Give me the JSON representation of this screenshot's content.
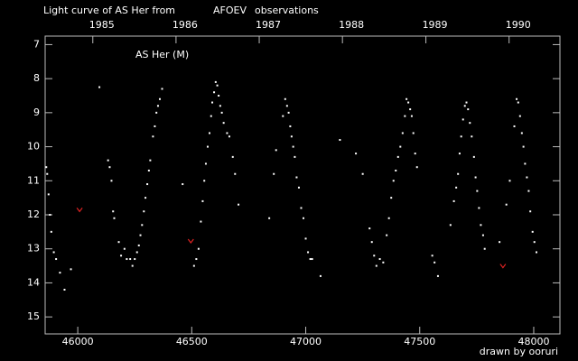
{
  "chart_data": {
    "type": "scatter",
    "title": "Light curve of AS Her from",
    "title_highlight": "AFOEV",
    "title_highlight_color": "#ffff00",
    "title_suffix": "observations",
    "annotation": "AS Her (M)",
    "credit": "drawn by ooruri",
    "credit_color": "#40b8e8",
    "xlim": [
      45857,
      48115
    ],
    "ylim": [
      15.5,
      6.75
    ],
    "xticks": [
      46000,
      46500,
      47000,
      47500,
      48000
    ],
    "yticks": [
      7,
      8,
      9,
      10,
      11,
      12,
      13,
      14,
      15
    ],
    "x2ticks": [
      {
        "value": 46066,
        "label": "1985"
      },
      {
        "value": 46431,
        "label": "1986"
      },
      {
        "value": 46796,
        "label": "1987"
      },
      {
        "value": 47161,
        "label": "1988"
      },
      {
        "value": 47527,
        "label": "1989"
      },
      {
        "value": 47892,
        "label": "1990"
      }
    ],
    "series": [
      {
        "color": "#ffffff",
        "marker": "dot",
        "x": [
          45862,
          45866,
          45872,
          45878,
          45884,
          45895,
          45905,
          45922,
          45942,
          45970,
          46095,
          46133,
          46140,
          46148,
          46155,
          46160,
          46180,
          46190,
          46205,
          46215,
          46230,
          46240,
          46250,
          46260,
          46268,
          46275,
          46282,
          46290,
          46297,
          46305,
          46312,
          46318,
          46330,
          46338,
          46345,
          46352,
          46360,
          46370,
          46460,
          46510,
          46520,
          46530,
          46540,
          46548,
          46555,
          46562,
          46570,
          46578,
          46585,
          46590,
          46598,
          46605,
          46612,
          46618,
          46625,
          46632,
          46640,
          46655,
          46665,
          46680,
          46690,
          46705,
          46840,
          46860,
          46870,
          46900,
          46910,
          46918,
          46925,
          46932,
          46938,
          46945,
          46952,
          46960,
          46970,
          46980,
          46990,
          47000,
          47010,
          47020,
          47028,
          47065,
          47150,
          47220,
          47250,
          47280,
          47290,
          47300,
          47310,
          47325,
          47340,
          47355,
          47365,
          47375,
          47385,
          47395,
          47405,
          47415,
          47425,
          47435,
          47442,
          47450,
          47458,
          47465,
          47472,
          47480,
          47488,
          47555,
          47565,
          47580,
          47635,
          47650,
          47660,
          47668,
          47675,
          47682,
          47690,
          47698,
          47705,
          47712,
          47720,
          47728,
          47738,
          47745,
          47752,
          47760,
          47768,
          47778,
          47785,
          47850,
          47880,
          47895,
          47915,
          47925,
          47932,
          47940,
          47948,
          47955,
          47962,
          47970,
          47978,
          47985,
          47995,
          48003,
          48012
        ],
        "values": [
          10.6,
          10.8,
          11.4,
          12.0,
          12.5,
          13.1,
          13.3,
          13.7,
          14.2,
          13.6,
          8.25,
          10.4,
          10.6,
          11.0,
          11.9,
          12.1,
          12.8,
          13.2,
          13.0,
          13.3,
          13.3,
          13.5,
          13.3,
          13.1,
          12.9,
          12.6,
          12.3,
          11.9,
          11.5,
          11.1,
          10.7,
          10.4,
          9.7,
          9.4,
          9.0,
          8.8,
          8.6,
          8.3,
          11.1,
          13.5,
          13.3,
          13.0,
          12.2,
          11.6,
          11.0,
          10.5,
          10.0,
          9.6,
          9.1,
          8.7,
          8.4,
          8.1,
          8.2,
          8.5,
          8.8,
          9.0,
          9.3,
          9.6,
          9.7,
          10.3,
          10.8,
          11.7,
          12.1,
          10.8,
          10.1,
          9.1,
          8.6,
          8.8,
          9.0,
          9.4,
          9.7,
          10.0,
          10.3,
          10.9,
          11.2,
          11.8,
          12.1,
          12.7,
          13.1,
          13.3,
          13.3,
          13.8,
          9.8,
          10.2,
          10.8,
          12.4,
          12.8,
          13.2,
          13.5,
          13.3,
          13.4,
          12.6,
          12.1,
          11.5,
          11.0,
          10.7,
          10.3,
          10.0,
          9.6,
          9.1,
          8.6,
          8.7,
          8.9,
          9.1,
          9.6,
          10.2,
          10.6,
          13.2,
          13.4,
          13.8,
          12.3,
          11.6,
          11.2,
          10.8,
          10.2,
          9.7,
          9.2,
          8.8,
          8.7,
          8.9,
          9.3,
          9.7,
          10.3,
          10.9,
          11.3,
          11.8,
          12.3,
          12.6,
          13.0,
          12.8,
          11.7,
          11.0,
          9.4,
          8.6,
          8.7,
          9.1,
          9.6,
          10.0,
          10.5,
          10.9,
          11.3,
          11.9,
          12.5,
          12.8,
          13.1
        ]
      },
      {
        "color": "#dd2222",
        "marker": "v",
        "x": [
          46008,
          46496,
          47865
        ],
        "values": [
          11.85,
          12.77,
          13.5
        ]
      }
    ]
  }
}
